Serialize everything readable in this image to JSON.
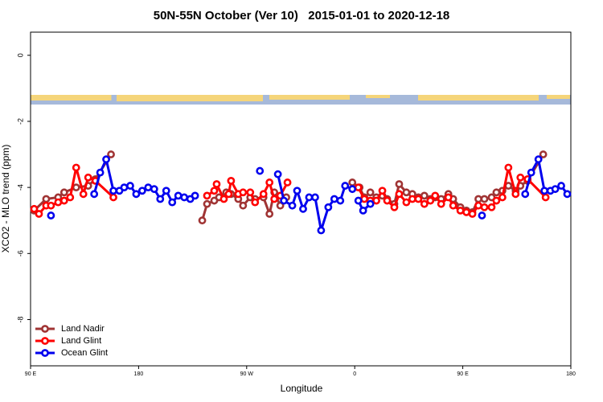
{
  "chart_data": {
    "type": "line",
    "title": "50N-55N October (Ver 10)   2015-01-01 to 2020-12-18",
    "xlabel": "Longitude",
    "ylabel": "XCO2 - MLO trend (ppm)",
    "xlim": [
      90,
      540
    ],
    "xticks": [
      {
        "value": 90,
        "label": "90 E"
      },
      {
        "value": 180,
        "label": "180"
      },
      {
        "value": 270,
        "label": "90 W"
      },
      {
        "value": 360,
        "label": "0"
      },
      {
        "value": 450,
        "label": "90 E"
      },
      {
        "value": 540,
        "label": "180"
      }
    ],
    "ylim": [
      -9.4,
      0.7
    ],
    "yticks": [
      0,
      -2,
      -4,
      -6,
      -8
    ],
    "legend": "bottom-left",
    "series": [
      {
        "name": "Land Nadir",
        "color": "#a03434",
        "x": [
          93,
          103,
          113,
          118,
          128,
          138,
          144,
          157,
          null,
          233,
          237,
          243,
          247,
          253,
          257,
          263,
          267,
          273,
          277,
          284,
          289,
          293,
          298,
          303,
          null,
          358,
          364,
          368,
          373,
          378,
          383,
          387,
          393,
          397,
          403,
          408,
          413,
          418,
          423,
          427,
          432,
          438,
          442,
          448,
          453,
          458,
          463,
          468,
          474,
          478,
          483,
          488,
          494,
          498,
          504,
          517
        ],
        "values": [
          -4.7,
          -4.35,
          -4.3,
          -4.15,
          -4.0,
          -3.95,
          -3.75,
          -3.0,
          null,
          -5.0,
          -4.5,
          -4.4,
          -4.3,
          -4.15,
          -4.2,
          -4.35,
          -4.55,
          -4.3,
          -4.35,
          -4.3,
          -4.8,
          -4.15,
          -4.55,
          -4.3,
          null,
          -3.85,
          -4.0,
          -4.3,
          -4.15,
          -4.3,
          -4.25,
          -4.35,
          -4.5,
          -3.9,
          -4.15,
          -4.2,
          -4.3,
          -4.25,
          -4.35,
          -4.3,
          -4.35,
          -4.2,
          -4.35,
          -4.6,
          -4.7,
          -4.75,
          -4.35,
          -4.35,
          -4.3,
          -4.15,
          -4.1,
          -3.95,
          -4.1,
          -3.95,
          -3.8,
          -3.0
        ]
      },
      {
        "name": "Land Glint",
        "color": "#ff0000",
        "x": [
          93,
          97,
          103,
          107,
          113,
          118,
          123,
          128,
          134,
          138,
          144,
          159,
          null,
          237,
          243,
          245,
          251,
          255,
          257,
          263,
          267,
          273,
          277,
          284,
          289,
          293,
          298,
          304,
          null,
          363,
          368,
          373,
          378,
          383,
          387,
          393,
          397,
          403,
          408,
          413,
          418,
          423,
          427,
          432,
          438,
          442,
          448,
          453,
          458,
          463,
          468,
          474,
          478,
          483,
          488,
          494,
          498,
          504,
          519
        ],
        "values": [
          -4.65,
          -4.8,
          -4.55,
          -4.55,
          -4.45,
          -4.4,
          -4.3,
          -3.4,
          -4.2,
          -3.7,
          -3.8,
          -4.3,
          null,
          -4.25,
          -4.1,
          -3.9,
          -4.35,
          -4.2,
          -3.8,
          -4.2,
          -4.15,
          -4.15,
          -4.45,
          -4.2,
          -3.85,
          -4.35,
          -4.25,
          -3.85,
          null,
          -4.0,
          -4.35,
          -4.4,
          -4.4,
          -4.1,
          -4.4,
          -4.6,
          -4.2,
          -4.45,
          -4.35,
          -4.35,
          -4.5,
          -4.4,
          -4.25,
          -4.5,
          -4.3,
          -4.55,
          -4.7,
          -4.75,
          -4.8,
          -4.55,
          -4.6,
          -4.6,
          -4.4,
          -4.3,
          -3.4,
          -4.2,
          -3.7,
          -3.75,
          -4.3
        ]
      },
      {
        "name": "Ocean Glint",
        "color": "#0000ee",
        "x": [
          107,
          null,
          143,
          148,
          153,
          159,
          164,
          168,
          173,
          178,
          183,
          188,
          193,
          198,
          203,
          208,
          213,
          218,
          223,
          227,
          null,
          281,
          null,
          296,
          301,
          308,
          312,
          317,
          322,
          327,
          332,
          338,
          343,
          348,
          352,
          358,
          null,
          363,
          367,
          373,
          null,
          466,
          null,
          502,
          507,
          513,
          518,
          523,
          527,
          532,
          537
        ],
        "values": [
          -4.85,
          null,
          -4.2,
          -3.55,
          -3.15,
          -4.1,
          -4.1,
          -4.0,
          -3.95,
          -4.2,
          -4.1,
          -4.0,
          -4.05,
          -4.35,
          -4.1,
          -4.45,
          -4.25,
          -4.3,
          -4.35,
          -4.25,
          null,
          -3.5,
          null,
          -3.6,
          -4.4,
          -4.55,
          -4.1,
          -4.65,
          -4.3,
          -4.3,
          -5.3,
          -4.6,
          -4.35,
          -4.4,
          -3.95,
          -4.05,
          null,
          -4.4,
          -4.7,
          -4.5,
          null,
          -4.85,
          null,
          -4.2,
          -3.55,
          -3.15,
          -4.1,
          -4.1,
          -4.05,
          -3.95,
          -4.2
        ]
      }
    ]
  }
}
